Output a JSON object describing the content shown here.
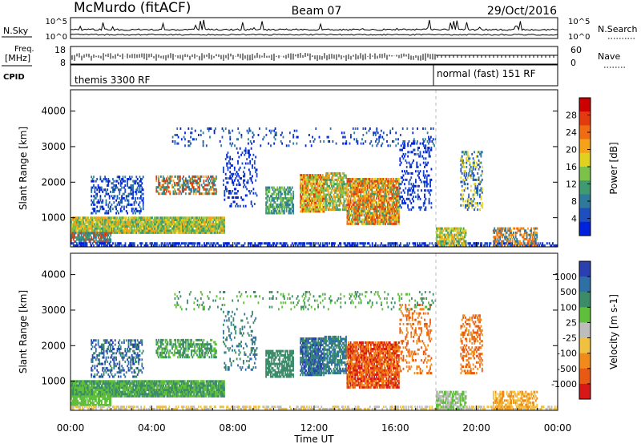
{
  "header": {
    "station": "McMurdo (fitACF)",
    "beam": "Beam 07",
    "date": "29/Oct/2016"
  },
  "top_panels": {
    "nsky_label": "N.Sky",
    "nsearch_label": "N.Search",
    "nsky_ticks": [
      "10^5",
      "10^0"
    ],
    "freq_label_1": "Freq.",
    "freq_label_2": "[MHz]",
    "freq_ticks": [
      "18",
      "8"
    ],
    "nave_label": "Nave",
    "nave_ticks": [
      "60",
      "0"
    ],
    "cpid_label": "CPID",
    "cpid_segments": [
      {
        "label": "themis 3300 RF",
        "start_hour": 0,
        "end_hour": 18.0
      },
      {
        "label": "normal (fast) 151 RF",
        "start_hour": 18.0,
        "end_hour": 24
      }
    ]
  },
  "colors": {
    "power": [
      "#0022dd",
      "#1f4fbf",
      "#2f7a9a",
      "#3f9a6f",
      "#7cc24a",
      "#e0d020",
      "#f5a21a",
      "#ef6c12",
      "#e33a10",
      "#cc0000"
    ],
    "velocity": [
      "#2a3fb0",
      "#2e6fa8",
      "#3c8c6a",
      "#5fbf3a",
      "#bdbdbd",
      "#f0c040",
      "#f08a1a",
      "#e85a14",
      "#d81818"
    ]
  },
  "chart_data": [
    {
      "type": "heatmap",
      "name": "power",
      "ylabel": "Slant Range [km]",
      "ylim": [
        180,
        4600
      ],
      "yticks": [
        1000,
        2000,
        3000,
        4000
      ],
      "xlim": [
        0,
        24
      ],
      "colorbar_label": "Power [dB]",
      "colorbar_ticks": [
        "4",
        "8",
        "12",
        "16",
        "20",
        "24",
        "28"
      ],
      "colorbar_range": [
        0,
        32
      ]
    },
    {
      "type": "heatmap",
      "name": "velocity",
      "ylabel": "Slant Range [km]",
      "ylim": [
        180,
        4600
      ],
      "yticks": [
        1000,
        2000,
        3000,
        4000
      ],
      "xlim": [
        0,
        24
      ],
      "xlabel": "Time UT",
      "xticks": [
        {
          "hour": 0,
          "label": "00:00"
        },
        {
          "hour": 4,
          "label": "04:00"
        },
        {
          "hour": 8,
          "label": "08:00"
        },
        {
          "hour": 12,
          "label": "12:00"
        },
        {
          "hour": 16,
          "label": "16:00"
        },
        {
          "hour": 20,
          "label": "20:00"
        },
        {
          "hour": 24,
          "label": "00:00"
        }
      ],
      "colorbar_label": "Velocity [m s-1]",
      "colorbar_ticks": [
        "1000",
        "500",
        "100",
        "25",
        "-25",
        "-100",
        "-500",
        "-1000"
      ]
    }
  ]
}
